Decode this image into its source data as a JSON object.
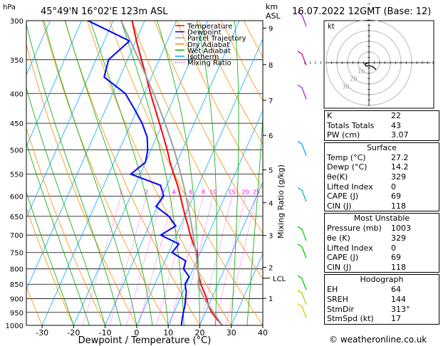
{
  "header": {
    "pressure_unit": "hPa",
    "location": "45°49'N  16°02'E  123m  ASL",
    "height_unit_1": "km",
    "height_unit_2": "ASL",
    "datetime": "16.07.2022  12GMT  (Base: 12)"
  },
  "legend": {
    "items": [
      {
        "label": "Temperature",
        "color": "#ff0000",
        "dash": "solid"
      },
      {
        "label": "Dewpoint",
        "color": "#0000ff",
        "dash": "solid"
      },
      {
        "label": "Parcel Trajectory",
        "color": "#a0a0a0",
        "dash": "solid"
      },
      {
        "label": "Dry Adiabat",
        "color": "#ff8c00",
        "dash": "solid"
      },
      {
        "label": "Wet Adiabat",
        "color": "#00aa00",
        "dash": "solid"
      },
      {
        "label": "Isotherm",
        "color": "#00aaff",
        "dash": "solid"
      },
      {
        "label": "Mixing Ratio",
        "color": "#ff00ff",
        "dash": "dotted"
      }
    ]
  },
  "chart_data": {
    "type": "line",
    "title": "",
    "xlabel": "Dewpoint / Temperature (°C)",
    "ylabel": "",
    "xlim": [
      -35,
      40
    ],
    "ylim_pressure": [
      1000,
      300
    ],
    "skew_deg_per_decade_px": 45,
    "x_ticks": [
      -30,
      -20,
      -10,
      0,
      10,
      20,
      30,
      40
    ],
    "pressure_ticks": [
      300,
      350,
      400,
      450,
      500,
      550,
      600,
      650,
      700,
      750,
      800,
      850,
      900,
      950,
      1000
    ],
    "height_km_ticks": [
      {
        "label": "9",
        "p": 309
      },
      {
        "label": "8",
        "p": 357
      },
      {
        "label": "7",
        "p": 411
      },
      {
        "label": "6",
        "p": 472
      },
      {
        "label": "5",
        "p": 541
      },
      {
        "label": "4",
        "p": 616
      },
      {
        "label": "3",
        "p": 701
      },
      {
        "label": "2",
        "p": 795
      },
      {
        "label": "1",
        "p": 899
      }
    ],
    "lcl_label": "LCL",
    "lcl_pressure": 830,
    "mixing_ratio_axis_label": "Mixing Ratio (g/kg)",
    "mixing_ratios": [
      {
        "label": "1",
        "g": 1
      },
      {
        "label": "2",
        "g": 2
      },
      {
        "label": "3",
        "g": 3
      },
      {
        "label": "4",
        "g": 4
      },
      {
        "label": "6",
        "g": 6
      },
      {
        "label": "8",
        "g": 8
      },
      {
        "label": "10",
        "g": 10
      },
      {
        "label": "15",
        "g": 15
      },
      {
        "label": "20",
        "g": 20
      },
      {
        "label": "25",
        "g": 25
      }
    ],
    "series": [
      {
        "name": "Temperature",
        "color": "#ff0000",
        "points": [
          [
            1000,
            27.2
          ],
          [
            975,
            24.5
          ],
          [
            950,
            22.0
          ],
          [
            925,
            20.0
          ],
          [
            900,
            18.5
          ],
          [
            875,
            16.6
          ],
          [
            850,
            14.6
          ],
          [
            825,
            13.0
          ],
          [
            800,
            11.4
          ],
          [
            775,
            10.2
          ],
          [
            750,
            9.0
          ],
          [
            725,
            6.6
          ],
          [
            700,
            4.4
          ],
          [
            675,
            2.4
          ],
          [
            650,
            0.2
          ],
          [
            625,
            -2.0
          ],
          [
            600,
            -4.2
          ],
          [
            575,
            -6.6
          ],
          [
            550,
            -9.4
          ],
          [
            525,
            -12.2
          ],
          [
            500,
            -14.8
          ],
          [
            475,
            -17.8
          ],
          [
            450,
            -21.0
          ],
          [
            425,
            -24.4
          ],
          [
            400,
            -28.0
          ],
          [
            375,
            -31.6
          ],
          [
            350,
            -35.6
          ],
          [
            325,
            -39.8
          ],
          [
            300,
            -44.0
          ]
        ]
      },
      {
        "name": "Dewpoint",
        "color": "#0000ff",
        "points": [
          [
            1000,
            14.2
          ],
          [
            975,
            13.5
          ],
          [
            950,
            13.0
          ],
          [
            925,
            12.5
          ],
          [
            900,
            11.8
          ],
          [
            875,
            11.0
          ],
          [
            850,
            9.6
          ],
          [
            825,
            9.8
          ],
          [
            800,
            7.0
          ],
          [
            775,
            6.5
          ],
          [
            750,
            1.0
          ],
          [
            725,
            2.0
          ],
          [
            700,
            -5.0
          ],
          [
            675,
            -1.5
          ],
          [
            650,
            -5.0
          ],
          [
            625,
            -10.5
          ],
          [
            600,
            -9.5
          ],
          [
            575,
            -12.0
          ],
          [
            550,
            -23.0
          ],
          [
            525,
            -20.0
          ],
          [
            500,
            -21.0
          ],
          [
            475,
            -23.0
          ],
          [
            450,
            -26.5
          ],
          [
            425,
            -31.0
          ],
          [
            400,
            -36.0
          ],
          [
            375,
            -45.0
          ],
          [
            350,
            -46.0
          ],
          [
            325,
            -42.0
          ],
          [
            300,
            -58.0
          ]
        ]
      },
      {
        "name": "Parcel Trajectory",
        "color": "#a0a0a0",
        "points": [
          [
            1000,
            27.2
          ],
          [
            950,
            22.5
          ],
          [
            900,
            17.7
          ],
          [
            850,
            13.6
          ],
          [
            830,
            13.1
          ],
          [
            800,
            11.5
          ],
          [
            750,
            8.6
          ],
          [
            700,
            5.3
          ],
          [
            650,
            1.7
          ],
          [
            600,
            -2.4
          ],
          [
            550,
            -7.1
          ],
          [
            500,
            -12.6
          ],
          [
            450,
            -19.2
          ],
          [
            400,
            -27.0
          ],
          [
            350,
            -36.4
          ],
          [
            300,
            -47.5
          ]
        ]
      }
    ],
    "hodograph": {
      "label": "kt",
      "rings_kt": [
        10,
        20,
        30,
        40
      ],
      "ring_labels": [
        "10",
        "20",
        "30"
      ]
    },
    "wind_barbs": [
      {
        "p": 300,
        "color": "#9932cc"
      },
      {
        "p": 350,
        "color": "#cc0099"
      },
      {
        "p": 400,
        "color": "#9932cc"
      },
      {
        "p": 500,
        "color": "#00aaff"
      },
      {
        "p": 600,
        "color": "#00bbbb"
      },
      {
        "p": 700,
        "color": "#00cc00"
      },
      {
        "p": 750,
        "color": "#00cc00"
      },
      {
        "p": 850,
        "color": "#00cc00"
      },
      {
        "p": 900,
        "color": "#aacc00"
      },
      {
        "p": 950,
        "color": "#cccc00"
      }
    ]
  },
  "indices": {
    "basic": [
      {
        "label": "K",
        "value": "22"
      },
      {
        "label": "Totals Totals",
        "value": "43"
      },
      {
        "label": "PW (cm)",
        "value": "3.07"
      }
    ],
    "surface": {
      "title": "Surface",
      "rows": [
        {
          "label": "Temp (°C)",
          "value": "27.2"
        },
        {
          "label": "Dewp (°C)",
          "value": "14.2"
        },
        {
          "label": "θe(K)",
          "value": "329"
        },
        {
          "label": "Lifted Index",
          "value": "0"
        },
        {
          "label": "CAPE (J)",
          "value": "69"
        },
        {
          "label": "CIN (J)",
          "value": "118"
        }
      ]
    },
    "most_unstable": {
      "title": "Most Unstable",
      "rows": [
        {
          "label": "Pressure (mb)",
          "value": "1003"
        },
        {
          "label": "θe (K)",
          "value": "329"
        },
        {
          "label": "Lifted Index",
          "value": "0"
        },
        {
          "label": "CAPE (J)",
          "value": "69"
        },
        {
          "label": "CIN (J)",
          "value": "118"
        }
      ]
    },
    "hodograph": {
      "title": "Hodograph",
      "rows": [
        {
          "label": "EH",
          "value": "64"
        },
        {
          "label": "SREH",
          "value": "144"
        },
        {
          "label": "StmDir",
          "value": "313°"
        },
        {
          "label": "StmSpd (kt)",
          "value": "17"
        }
      ]
    }
  },
  "footer": {
    "credit": "© weatheronline.co.uk"
  }
}
